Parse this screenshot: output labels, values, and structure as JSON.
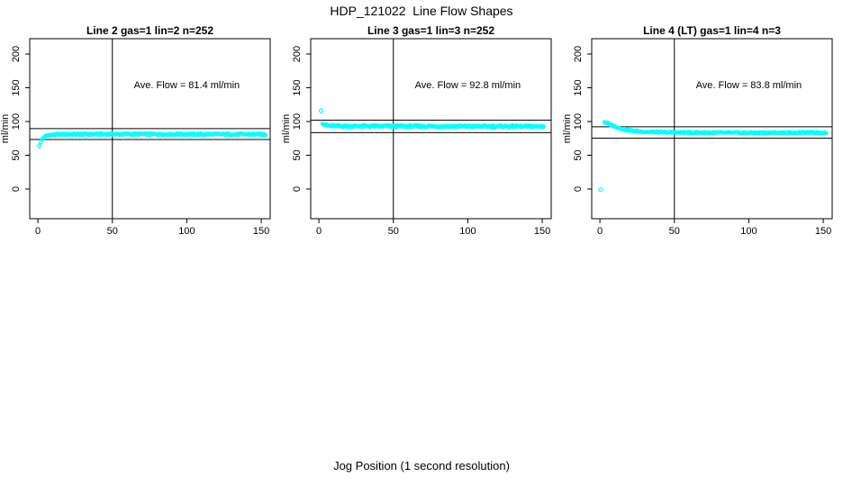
{
  "chart_data": {
    "type": "scatter",
    "title": "HDP_121022  Line Flow Shapes",
    "xlabel": "Jog Position (1 second resolution)",
    "ylabel": "ml/min",
    "x_ticks": [
      0,
      50,
      100,
      150
    ],
    "y_ticks": [
      0,
      50,
      100,
      150,
      200
    ],
    "xlim": [
      -5.5,
      156
    ],
    "ylim": [
      -44,
      222.7
    ],
    "grid": false,
    "legend": false,
    "point_color": "#00ffff",
    "axis_color": "#000000",
    "vline_x": 50,
    "ref_lines_rule": "average flow plus/minus 10 percent",
    "panels": [
      {
        "title": "Line 2 gas=1 lin=2 n=252",
        "n": 252,
        "ave_flow": 81.4,
        "ave_flow_label": "Ave. Flow =  81.4  ml/min",
        "ref_lines": [
          89.5,
          73.3
        ],
        "outliers": [
          [
            1,
            64
          ]
        ],
        "profile": [
          [
            2,
            70
          ],
          [
            3,
            74
          ],
          [
            4,
            76.5
          ],
          [
            5,
            78
          ],
          [
            6,
            79
          ],
          [
            8,
            80
          ],
          [
            12,
            80.6
          ],
          [
            20,
            81
          ],
          [
            50,
            81.3
          ],
          [
            100,
            81.1
          ],
          [
            153,
            81
          ]
        ],
        "x_range": [
          2,
          153
        ],
        "jitter": 1.3
      },
      {
        "title": "Line 3 gas=1 lin=3 n=252",
        "n": 252,
        "ave_flow": 92.8,
        "ave_flow_label": "Ave. Flow =  92.8  ml/min",
        "ref_lines": [
          102.1,
          83.5
        ],
        "outliers": [
          [
            1.5,
            116
          ]
        ],
        "profile": [
          [
            2.5,
            98
          ],
          [
            3.5,
            96
          ],
          [
            5,
            94.5
          ],
          [
            7,
            93.6
          ],
          [
            12,
            93.2
          ],
          [
            50,
            93
          ],
          [
            100,
            92.8
          ],
          [
            151,
            92.7
          ]
        ],
        "x_range": [
          2.5,
          151
        ],
        "jitter": 1.6
      },
      {
        "title": "Line 4 (LT) gas=1 lin=4 n=3",
        "n": 3,
        "ave_flow": 83.8,
        "ave_flow_label": "Ave. Flow =  83.8  ml/min",
        "ref_lines": [
          92.2,
          75.4
        ],
        "outliers": [
          [
            0.5,
            -1
          ]
        ],
        "profile": [
          [
            3,
            99.5
          ],
          [
            5,
            97.5
          ],
          [
            7,
            95.5
          ],
          [
            9,
            93.5
          ],
          [
            12,
            91
          ],
          [
            15,
            89
          ],
          [
            18,
            87.5
          ],
          [
            22,
            86.2
          ],
          [
            27,
            85.2
          ],
          [
            33,
            84.5
          ],
          [
            42,
            84
          ],
          [
            60,
            83.6
          ],
          [
            90,
            83.3
          ],
          [
            120,
            83.3
          ],
          [
            152,
            83.7
          ]
        ],
        "x_range": [
          3,
          152
        ],
        "jitter": 1.1
      }
    ]
  }
}
